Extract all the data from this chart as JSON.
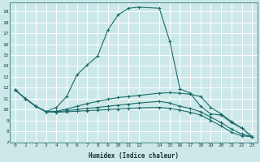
{
  "xlabel": "Humidex (Indice chaleur)",
  "bg_color": "#cde8e8",
  "grid_color": "#b0d8d8",
  "line_color": "#1a6b6b",
  "xlim": [
    -0.5,
    23.5
  ],
  "ylim": [
    7,
    19.8
  ],
  "yticks": [
    7,
    8,
    9,
    10,
    11,
    12,
    13,
    14,
    15,
    16,
    17,
    18,
    19
  ],
  "xticks": [
    0,
    1,
    2,
    3,
    4,
    5,
    6,
    7,
    8,
    9,
    10,
    11,
    12,
    14,
    15,
    16,
    17,
    18,
    19,
    20,
    21,
    22,
    23
  ],
  "xtick_labels": [
    "0",
    "1",
    "2",
    "3",
    "4",
    "5",
    "6",
    "7",
    "8",
    "9",
    "10",
    "11",
    "12",
    "14",
    "15",
    "16",
    "17",
    "18",
    "19",
    "20",
    "21",
    "22",
    "23"
  ],
  "series": [
    {
      "x": [
        0,
        1,
        2,
        3,
        4,
        5,
        6,
        7,
        8,
        9,
        10,
        11,
        12,
        14,
        15,
        16,
        17,
        18,
        19,
        20,
        21,
        22,
        23
      ],
      "y": [
        11.8,
        11.0,
        10.3,
        9.8,
        10.2,
        11.2,
        13.2,
        14.1,
        14.9,
        17.3,
        18.7,
        19.3,
        19.4,
        19.3,
        16.3,
        11.9,
        11.5,
        10.3,
        9.6,
        9.5,
        8.8,
        8.3,
        7.5
      ]
    },
    {
      "x": [
        0,
        1,
        2,
        3,
        4,
        5,
        6,
        7,
        8,
        9,
        10,
        11,
        12,
        14,
        15,
        16,
        17,
        18,
        19,
        20,
        21,
        22,
        23
      ],
      "y": [
        11.8,
        11.0,
        10.3,
        9.8,
        9.85,
        10.05,
        10.3,
        10.55,
        10.75,
        10.95,
        11.1,
        11.2,
        11.3,
        11.5,
        11.55,
        11.5,
        11.4,
        11.2,
        10.2,
        9.6,
        8.9,
        8.3,
        7.5
      ]
    },
    {
      "x": [
        0,
        1,
        2,
        3,
        4,
        5,
        6,
        7,
        8,
        9,
        10,
        11,
        12,
        14,
        15,
        16,
        17,
        18,
        19,
        20,
        21,
        22,
        23
      ],
      "y": [
        11.8,
        11.0,
        10.3,
        9.8,
        9.8,
        9.9,
        10.0,
        10.1,
        10.2,
        10.3,
        10.4,
        10.5,
        10.6,
        10.75,
        10.6,
        10.3,
        10.1,
        9.8,
        9.3,
        8.8,
        8.2,
        7.75,
        7.5
      ]
    },
    {
      "x": [
        0,
        1,
        2,
        3,
        4,
        5,
        6,
        7,
        8,
        9,
        10,
        11,
        12,
        14,
        15,
        16,
        17,
        18,
        19,
        20,
        21,
        22,
        23
      ],
      "y": [
        11.8,
        11.0,
        10.3,
        9.8,
        9.75,
        9.8,
        9.85,
        9.9,
        9.95,
        10.0,
        10.05,
        10.1,
        10.15,
        10.2,
        10.1,
        9.95,
        9.75,
        9.5,
        9.0,
        8.5,
        7.9,
        7.6,
        7.5
      ]
    }
  ]
}
